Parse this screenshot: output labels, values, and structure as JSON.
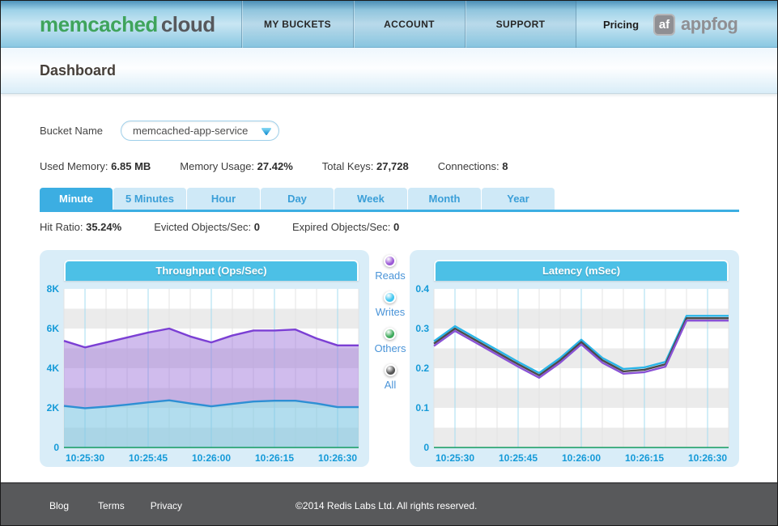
{
  "nav": {
    "logo_part1": "memcached",
    "logo_part2": "cloud",
    "items": [
      {
        "label": "MY BUCKETS"
      },
      {
        "label": "ACCOUNT"
      },
      {
        "label": "SUPPORT"
      }
    ],
    "pricing_label": "Pricing",
    "appfog_badge": "af",
    "appfog_name": "appfog"
  },
  "header": {
    "title": "Dashboard"
  },
  "bucket": {
    "label": "Bucket Name",
    "selected": "memcached-app-service"
  },
  "stats": [
    {
      "label": "Used Memory:",
      "value": "6.85 MB"
    },
    {
      "label": "Memory Usage:",
      "value": "27.42%"
    },
    {
      "label": "Total Keys:",
      "value": "27,728"
    },
    {
      "label": "Connections:",
      "value": "8"
    }
  ],
  "tabs": [
    {
      "label": "Minute",
      "active": true
    },
    {
      "label": "5 Minutes",
      "active": false
    },
    {
      "label": "Hour",
      "active": false
    },
    {
      "label": "Day",
      "active": false
    },
    {
      "label": "Week",
      "active": false
    },
    {
      "label": "Month",
      "active": false
    },
    {
      "label": "Year",
      "active": false
    }
  ],
  "substats": [
    {
      "label": "Hit Ratio:",
      "value": "35.24%"
    },
    {
      "label": "Evicted Objects/Sec:",
      "value": "0"
    },
    {
      "label": "Expired Objects/Sec:",
      "value": "0"
    }
  ],
  "legend": [
    {
      "label": "Reads",
      "color": "#9b59d6"
    },
    {
      "label": "Writes",
      "color": "#3fc6f0"
    },
    {
      "label": "Others",
      "color": "#3faa5c"
    },
    {
      "label": "All",
      "color": "#555555"
    }
  ],
  "colors": {
    "accent_blue": "#3caee2",
    "axis_label_blue": "#149ad8",
    "panel_bg": "#d9edf8",
    "chart_title_bg": "#4cc0e6",
    "footer_bg": "#58595b",
    "logo_green": "#3fa45c"
  },
  "chart_data": [
    {
      "type": "area",
      "title": "Throughput (Ops/Sec)",
      "x_tick_labels": [
        "10:25:30",
        "10:25:45",
        "10:26:00",
        "10:26:15",
        "10:26:30"
      ],
      "x_major_indices": [
        1,
        4,
        7,
        10,
        13
      ],
      "ylim": [
        0,
        8000
      ],
      "band_count": 8,
      "grid": true,
      "legend_position": "between-charts",
      "yticks": [
        {
          "v": 0,
          "label": "0"
        },
        {
          "v": 2000,
          "label": "2K"
        },
        {
          "v": 4000,
          "label": "4K"
        },
        {
          "v": 6000,
          "label": "6K"
        },
        {
          "v": 8000,
          "label": "8K"
        }
      ],
      "series": [
        {
          "name": "Reads",
          "line_color": "#7b3fd4",
          "fill_color": "rgba(151,106,214,0.45)",
          "base": "Writes",
          "values": [
            5380,
            5050,
            5300,
            5550,
            5800,
            6000,
            5600,
            5300,
            5650,
            5900,
            5900,
            5950,
            5500,
            5150,
            5150
          ]
        },
        {
          "name": "Writes",
          "line_color": "#2e8fd4",
          "fill_color": "rgba(126,199,226,0.6)",
          "base": "zero",
          "values": [
            2100,
            1980,
            2060,
            2160,
            2280,
            2380,
            2220,
            2080,
            2200,
            2320,
            2360,
            2360,
            2220,
            2040,
            2040
          ]
        }
      ]
    },
    {
      "type": "line",
      "title": "Latency (mSec)",
      "x_tick_labels": [
        "10:25:30",
        "10:25:45",
        "10:26:00",
        "10:26:15",
        "10:26:30"
      ],
      "x_major_indices": [
        1,
        4,
        7,
        10,
        13
      ],
      "ylim": [
        0,
        0.4
      ],
      "band_count": 8,
      "grid": true,
      "yticks": [
        {
          "v": 0,
          "label": "0"
        },
        {
          "v": 0.1,
          "label": "0.1"
        },
        {
          "v": 0.2,
          "label": "0.2"
        },
        {
          "v": 0.3,
          "label": "0.3"
        },
        {
          "v": 0.4,
          "label": "0.4"
        }
      ],
      "series": [
        {
          "name": "Writes",
          "line_color": "#29b5e8",
          "values": [
            0.268,
            0.306,
            0.276,
            0.246,
            0.216,
            0.188,
            0.226,
            0.272,
            0.226,
            0.198,
            0.202,
            0.216,
            0.332,
            0.332,
            0.332
          ]
        },
        {
          "name": "All",
          "line_color": "#4a4a4a",
          "values": [
            0.262,
            0.3,
            0.27,
            0.24,
            0.21,
            0.182,
            0.22,
            0.266,
            0.22,
            0.192,
            0.196,
            0.21,
            0.326,
            0.326,
            0.326
          ]
        },
        {
          "name": "Reads",
          "line_color": "#8a52d6",
          "values": [
            0.256,
            0.294,
            0.264,
            0.234,
            0.204,
            0.176,
            0.214,
            0.26,
            0.214,
            0.186,
            0.19,
            0.204,
            0.32,
            0.32,
            0.32
          ]
        }
      ]
    }
  ],
  "footer": {
    "links": [
      "Blog",
      "Terms",
      "Privacy"
    ],
    "copyright": "©2014 Redis Labs Ltd. All rights reserved."
  }
}
